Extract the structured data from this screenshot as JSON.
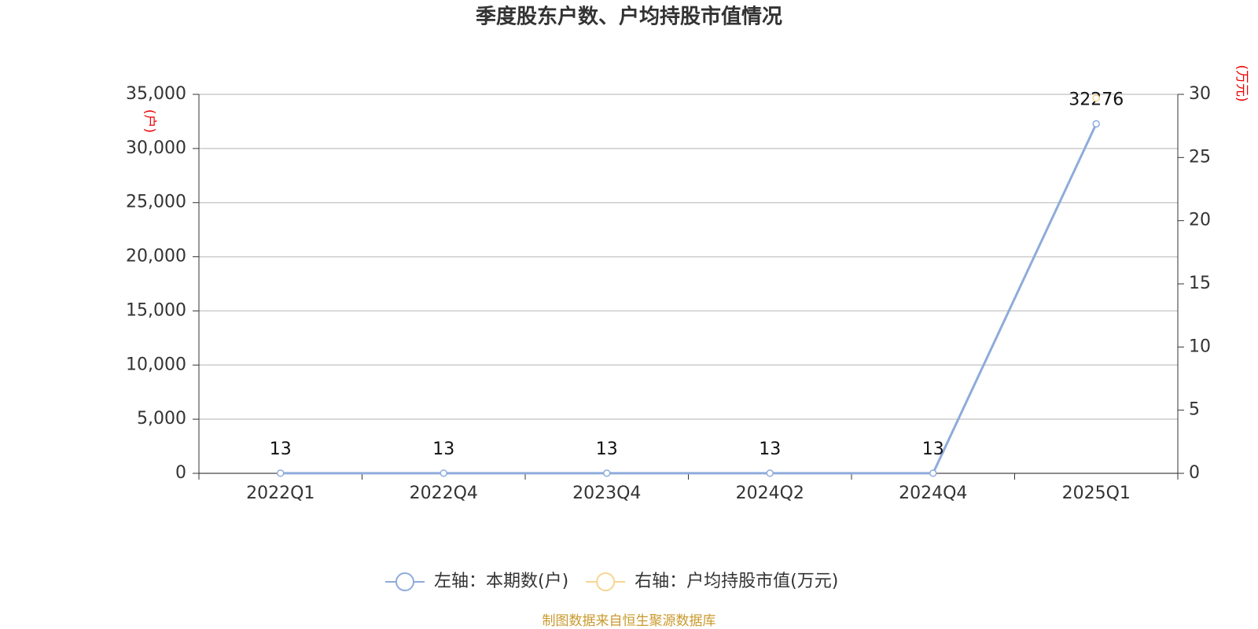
{
  "chart_data": {
    "type": "line",
    "title": "季度股东户数、户均持股市值情况",
    "y_label": "(户)",
    "y2_label": "(万元)",
    "categories": [
      "2022Q1",
      "2022Q4",
      "2023Q4",
      "2024Q2",
      "2024Q4",
      "2025Q1"
    ],
    "series": [
      {
        "name": "左轴：本期数(户)",
        "color": "#8eabdb",
        "values": [
          13,
          13,
          13,
          13,
          13,
          32276
        ]
      },
      {
        "name": "右轴：户均持股市值(万元)",
        "color": "#f7d591",
        "values": [
          null,
          null,
          null,
          null,
          null,
          29.7
        ],
        "axis": "y2"
      }
    ],
    "ylim": [
      0,
      35000
    ],
    "yticks": [
      0,
      {
        "value": 5000,
        "label": "5,000"
      },
      {
        "value": 10000,
        "label": "10,000"
      },
      {
        "value": 15000,
        "label": "15,000"
      },
      {
        "value": 20000,
        "label": "20,000"
      },
      {
        "value": 25000,
        "label": "25,000"
      },
      {
        "value": 30000,
        "label": "30,000"
      },
      {
        "value": 35000,
        "label": "35,000"
      }
    ],
    "y2lim": [
      0,
      30
    ],
    "y2ticks": [
      0,
      5,
      10,
      15,
      20,
      25,
      30
    ],
    "grid": true,
    "legend": "bottom",
    "source": "制图数据来自恒生聚源数据库"
  }
}
